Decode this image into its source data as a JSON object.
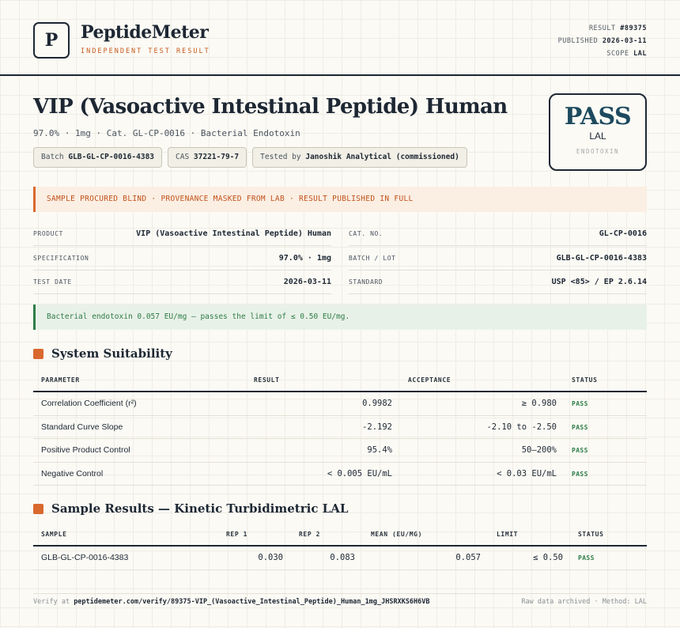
{
  "header": {
    "logo_letter": "P",
    "brand": "PeptideMeter",
    "brand_sub": "INDEPENDENT TEST RESULT",
    "result_label": "RESULT",
    "result_value": "#89375",
    "published_label": "PUBLISHED",
    "published_value": "2026-03-11",
    "scope_label": "SCOPE",
    "scope_value": "LAL"
  },
  "title": "VIP (Vasoactive Intestinal Peptide) Human",
  "subtitle": "97.0% · 1mg · Cat. GL-CP-0016 · Bacterial Endotoxin",
  "chips": [
    {
      "label": "Batch",
      "value": "GLB-GL-CP-0016-4383"
    },
    {
      "label": "CAS",
      "value": "37221-79-7"
    },
    {
      "label": "Tested by",
      "value": "Janoshik Analytical (commissioned)"
    }
  ],
  "stamp": {
    "main": "PASS",
    "method": "LAL",
    "small": "ENDOTOXIN"
  },
  "notice": "SAMPLE PROCURED BLIND · PROVENANCE MASKED FROM LAB · RESULT PUBLISHED IN FULL",
  "info": [
    {
      "label": "PRODUCT",
      "value": "VIP (Vasoactive Intestinal Peptide) Human"
    },
    {
      "label": "CAT. NO.",
      "value": "GL-CP-0016"
    },
    {
      "label": "SPECIFICATION",
      "value": "97.0% · 1mg"
    },
    {
      "label": "BATCH / LOT",
      "value": "GLB-GL-CP-0016-4383"
    },
    {
      "label": "TEST DATE",
      "value": "2026-03-11"
    },
    {
      "label": "STANDARD",
      "value": "USP <85> / EP 2.6.14"
    }
  ],
  "result_message": "Bacterial endotoxin 0.057 EU/mg — passes the limit of ≤ 0.50 EU/mg.",
  "suitability": {
    "title": "System Suitability",
    "columns": [
      "PARAMETER",
      "RESULT",
      "ACCEPTANCE",
      "STATUS"
    ],
    "rows": [
      {
        "parameter": "Correlation Coefficient (r²)",
        "result": "0.9982",
        "acceptance": "≥ 0.980",
        "status": "PASS"
      },
      {
        "parameter": "Standard Curve Slope",
        "result": "-2.192",
        "acceptance": "-2.10 to -2.50",
        "status": "PASS"
      },
      {
        "parameter": "Positive Product Control",
        "result": "95.4%",
        "acceptance": "50–200%",
        "status": "PASS"
      },
      {
        "parameter": "Negative Control",
        "result": "< 0.005 EU/mL",
        "acceptance": "< 0.03 EU/mL",
        "status": "PASS"
      }
    ]
  },
  "samples": {
    "title": "Sample Results — Kinetic Turbidimetric LAL",
    "columns": [
      "SAMPLE",
      "REP 1",
      "REP 2",
      "MEAN (EU/MG)",
      "LIMIT",
      "STATUS"
    ],
    "rows": [
      {
        "sample": "GLB-GL-CP-0016-4383",
        "rep1": "0.030",
        "rep2": "0.083",
        "mean": "0.057",
        "limit": "≤ 0.50",
        "status": "PASS"
      }
    ]
  },
  "footer": {
    "verify_prefix": "Verify at",
    "verify_url": "peptidemeter.com/verify/89375-VIP_(Vasoactive_Intestinal_Peptide)_Human_1mg_JHSRXKS6H6VB",
    "right": "Raw data archived · Method: LAL"
  }
}
